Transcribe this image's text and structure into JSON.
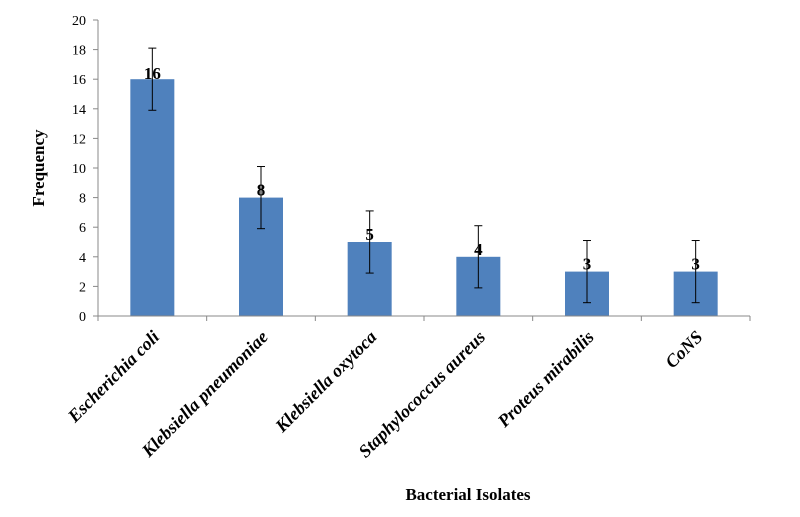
{
  "chart_data": {
    "type": "bar",
    "xlabel": "Bacterial Isolates",
    "ylabel": "Frequency",
    "ylim": [
      0,
      20
    ],
    "yticks": [
      0,
      2,
      4,
      6,
      8,
      10,
      12,
      14,
      16,
      18,
      20
    ],
    "grid": false,
    "legend": "none",
    "categories": [
      "Escherichia coli",
      "Klebsiella pneumoniae",
      "Klebsiella oxytoca",
      "Staphylococcus aureus",
      "Proteus mirabilis",
      "CoNS"
    ],
    "values": [
      16,
      8,
      5,
      4,
      3,
      3
    ],
    "data_labels": [
      "16",
      "8",
      "5",
      "4",
      "3",
      "3"
    ],
    "error": [
      2.1,
      2.1,
      2.1,
      2.1,
      2.1,
      2.1
    ],
    "bar_color": "#4f81bd"
  }
}
